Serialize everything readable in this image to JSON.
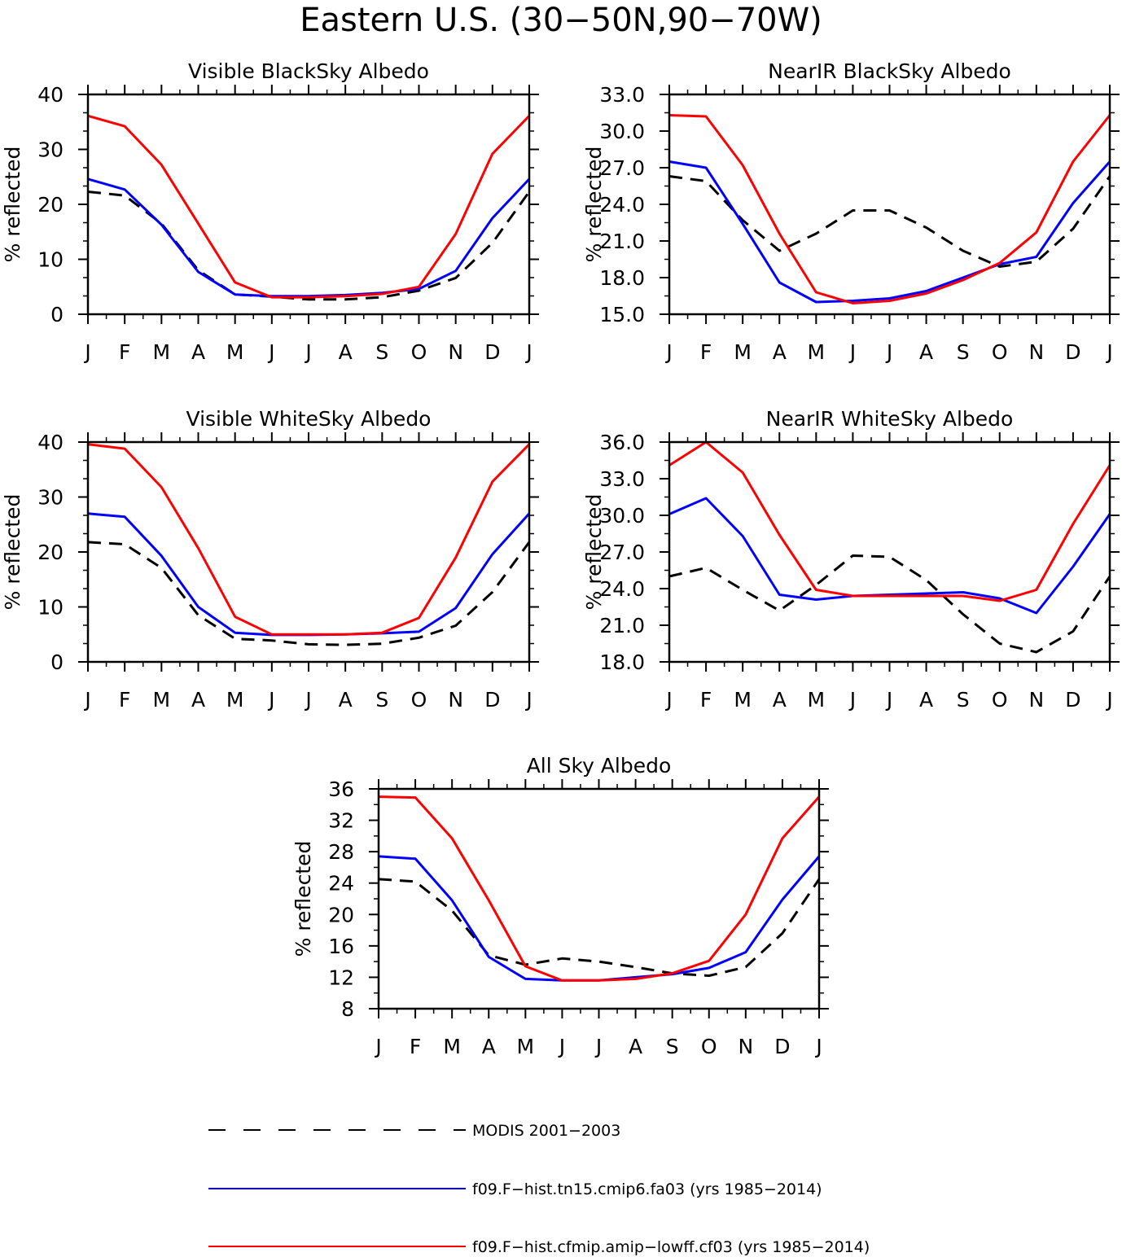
{
  "title": "Eastern U.S. (30−50N,90−70W)",
  "months": [
    "J",
    "F",
    "M",
    "A",
    "M",
    "J",
    "J",
    "A",
    "S",
    "O",
    "N",
    "D",
    "J"
  ],
  "colors": {
    "modis": "#000000",
    "fa03": "#0000ff",
    "cf03": "#ff0000"
  },
  "legend": [
    {
      "key": "modis",
      "label": "MODIS 2001−2003",
      "style": "dashed"
    },
    {
      "key": "fa03",
      "label": "f09.F−hist.tn15.cmip6.fa03 (yrs 1985−2014)",
      "style": "solid"
    },
    {
      "key": "cf03",
      "label": "f09.F−hist.cfmip.amip−lowff.cf03 (yrs 1985−2014)",
      "style": "solid"
    }
  ],
  "chart_data": [
    {
      "type": "line",
      "title": "Visible BlackSky Albedo",
      "ylabel": "% reflected",
      "ylim": [
        0,
        40
      ],
      "yticks": [
        "0",
        "10",
        "20",
        "30",
        "40"
      ],
      "yminor": 2,
      "categories": [
        "J",
        "F",
        "M",
        "A",
        "M",
        "J",
        "J",
        "A",
        "S",
        "O",
        "N",
        "D",
        "J"
      ],
      "series": [
        {
          "key": "modis",
          "values": [
            22.3,
            21.6,
            16.5,
            8.0,
            3.6,
            3.2,
            2.7,
            2.7,
            3.1,
            4.3,
            6.6,
            13.0,
            22.3
          ]
        },
        {
          "key": "fa03",
          "values": [
            24.6,
            22.7,
            16.3,
            7.7,
            3.6,
            3.3,
            3.3,
            3.5,
            3.9,
            4.6,
            7.9,
            17.5,
            24.6
          ]
        },
        {
          "key": "cf03",
          "values": [
            36.1,
            34.2,
            27.2,
            16.5,
            5.8,
            3.1,
            3.1,
            3.3,
            3.7,
            5.0,
            14.6,
            29.2,
            36.1
          ]
        }
      ]
    },
    {
      "type": "line",
      "title": "NearIR BlackSky Albedo",
      "ylabel": "% reflected",
      "ylim": [
        15,
        33
      ],
      "yticks": [
        "15.0",
        "18.0",
        "21.0",
        "24.0",
        "27.0",
        "30.0",
        "33.0"
      ],
      "yminor": 1,
      "categories": [
        "J",
        "F",
        "M",
        "A",
        "M",
        "J",
        "J",
        "A",
        "S",
        "O",
        "N",
        "D",
        "J"
      ],
      "series": [
        {
          "key": "modis",
          "values": [
            26.3,
            25.9,
            22.7,
            20.2,
            21.6,
            23.5,
            23.5,
            22.1,
            20.2,
            18.9,
            19.3,
            22.0,
            26.3
          ]
        },
        {
          "key": "fa03",
          "values": [
            27.5,
            27.0,
            22.4,
            17.6,
            16.0,
            16.1,
            16.3,
            16.9,
            18.0,
            19.1,
            19.7,
            24.1,
            27.5
          ]
        },
        {
          "key": "cf03",
          "values": [
            31.3,
            31.2,
            27.2,
            21.6,
            16.8,
            15.9,
            16.1,
            16.7,
            17.8,
            19.2,
            21.7,
            27.5,
            31.3
          ]
        }
      ]
    },
    {
      "type": "line",
      "title": "Visible WhiteSky Albedo",
      "ylabel": "% reflected",
      "ylim": [
        0,
        40
      ],
      "yticks": [
        "0",
        "10",
        "20",
        "30",
        "40"
      ],
      "yminor": 2,
      "categories": [
        "J",
        "F",
        "M",
        "A",
        "M",
        "J",
        "J",
        "A",
        "S",
        "O",
        "N",
        "D",
        "J"
      ],
      "series": [
        {
          "key": "modis",
          "values": [
            21.8,
            21.4,
            17.1,
            8.5,
            4.2,
            3.9,
            3.2,
            3.1,
            3.3,
            4.4,
            6.6,
            12.7,
            21.8
          ]
        },
        {
          "key": "fa03",
          "values": [
            27.0,
            26.4,
            19.3,
            10.0,
            5.3,
            4.9,
            4.9,
            5.0,
            5.2,
            5.5,
            9.8,
            19.6,
            27.0
          ]
        },
        {
          "key": "cf03",
          "values": [
            39.6,
            38.8,
            31.8,
            20.7,
            8.2,
            5.0,
            5.0,
            5.0,
            5.3,
            8.0,
            19.0,
            32.8,
            39.6
          ]
        }
      ]
    },
    {
      "type": "line",
      "title": "NearIR WhiteSky Albedo",
      "ylabel": "% reflected",
      "ylim": [
        18,
        36
      ],
      "yticks": [
        "18.0",
        "21.0",
        "24.0",
        "27.0",
        "30.0",
        "33.0",
        "36.0"
      ],
      "yminor": 1,
      "categories": [
        "J",
        "F",
        "M",
        "A",
        "M",
        "J",
        "J",
        "A",
        "S",
        "O",
        "N",
        "D",
        "J"
      ],
      "series": [
        {
          "key": "modis",
          "values": [
            25.0,
            25.7,
            23.9,
            22.2,
            24.3,
            26.7,
            26.6,
            24.7,
            21.9,
            19.5,
            18.8,
            20.5,
            25.0
          ]
        },
        {
          "key": "fa03",
          "values": [
            30.1,
            31.4,
            28.3,
            23.5,
            23.1,
            23.4,
            23.5,
            23.6,
            23.7,
            23.2,
            22.0,
            25.8,
            30.1
          ]
        },
        {
          "key": "cf03",
          "values": [
            34.1,
            36.0,
            33.5,
            28.4,
            23.9,
            23.4,
            23.4,
            23.4,
            23.4,
            23.0,
            23.9,
            29.3,
            34.1
          ]
        }
      ]
    },
    {
      "type": "line",
      "title": "All Sky Albedo",
      "ylabel": "% reflected",
      "ylim": [
        8,
        36
      ],
      "yticks": [
        "8",
        "12",
        "16",
        "20",
        "24",
        "28",
        "32",
        "36"
      ],
      "yminor": 1,
      "categories": [
        "J",
        "F",
        "M",
        "A",
        "M",
        "J",
        "J",
        "A",
        "S",
        "O",
        "N",
        "D",
        "J"
      ],
      "series": [
        {
          "key": "modis",
          "values": [
            24.5,
            24.2,
            20.5,
            14.8,
            13.6,
            14.4,
            14.0,
            13.3,
            12.5,
            12.2,
            13.3,
            17.6,
            24.5
          ]
        },
        {
          "key": "fa03",
          "values": [
            27.4,
            27.1,
            21.8,
            14.6,
            11.8,
            11.6,
            11.6,
            12.0,
            12.4,
            13.2,
            15.2,
            21.9,
            27.4
          ]
        },
        {
          "key": "cf03",
          "values": [
            35.0,
            34.9,
            29.7,
            21.8,
            13.4,
            11.6,
            11.6,
            11.8,
            12.5,
            14.1,
            20.0,
            29.7,
            35.0
          ]
        }
      ]
    }
  ]
}
